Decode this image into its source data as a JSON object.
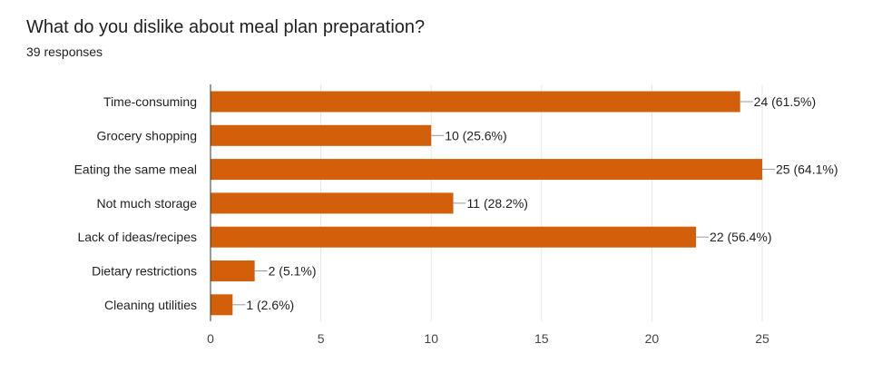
{
  "title": "What do you dislike about meal plan preparation?",
  "subtitle": "39 responses",
  "chart_data": {
    "type": "bar",
    "orientation": "horizontal",
    "categories": [
      "Time-consuming",
      "Grocery shopping",
      "Eating the same meal",
      "Not much storage",
      "Lack of ideas/recipes",
      "Dietary restrictions",
      "Cleaning utilities"
    ],
    "values": [
      24,
      10,
      25,
      11,
      22,
      2,
      1
    ],
    "data_labels": [
      "24 (61.5%)",
      "10 (25.6%)",
      "25 (64.1%)",
      "11 (28.2%)",
      "22 (56.4%)",
      "2 (5.1%)",
      "1 (2.6%)"
    ],
    "xlim": [
      0,
      25
    ],
    "xticks": [
      0,
      5,
      10,
      15,
      20,
      25
    ],
    "grid": true,
    "bar_color": "#d35f0b"
  }
}
